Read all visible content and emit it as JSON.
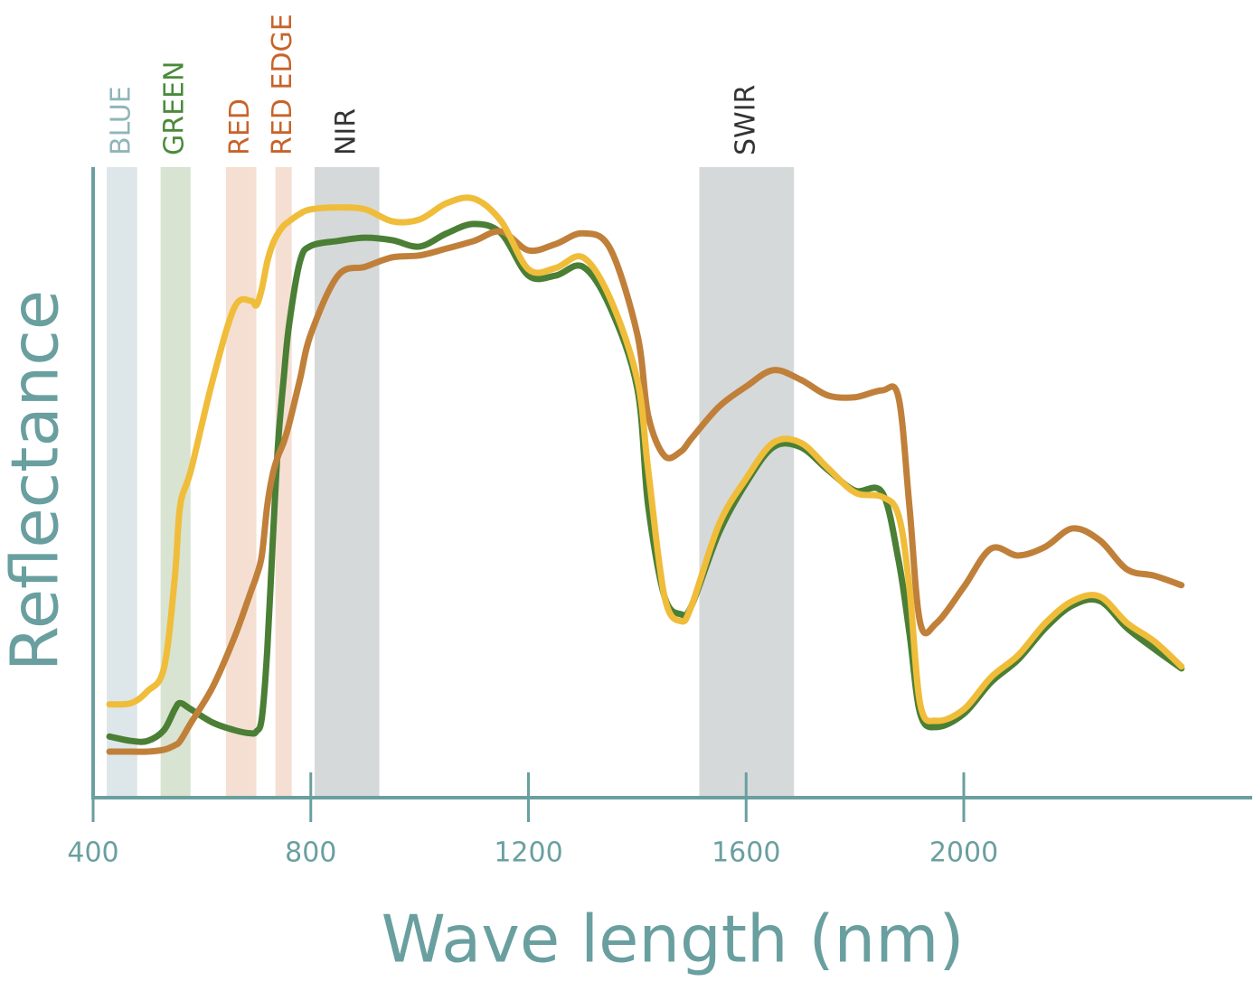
{
  "chart_data": {
    "type": "line",
    "x_label": "Wave length (nm)",
    "y_label": "Reflectance",
    "x": [
      430,
      470,
      500,
      530,
      550,
      560,
      580,
      620,
      660,
      690,
      700,
      710,
      720,
      730,
      740,
      750,
      760,
      780,
      800,
      850,
      900,
      950,
      1000,
      1050,
      1100,
      1150,
      1200,
      1250,
      1300,
      1350,
      1400,
      1420,
      1450,
      1480,
      1500,
      1550,
      1600,
      1650,
      1700,
      1750,
      1800,
      1850,
      1880,
      1900,
      1920,
      1950,
      2000,
      2050,
      2100,
      2150,
      2200,
      2250,
      2300,
      2350,
      2400
    ],
    "series": [
      {
        "color": "#4a7f35",
        "values": [
          9.7,
          9.0,
          9.0,
          10.7,
          14.0,
          15.0,
          14.0,
          11.9,
          10.7,
          10.2,
          10.5,
          12.6,
          23.4,
          40.5,
          56.3,
          66.3,
          74.9,
          85,
          87.5,
          88.3,
          88.8,
          88.4,
          87.4,
          89.5,
          91,
          89.5,
          82.8,
          82.8,
          84.2,
          77.8,
          64.9,
          46.3,
          31.9,
          29.1,
          30.5,
          42,
          49.9,
          55.6,
          55.6,
          52,
          48.7,
          48.4,
          37.7,
          26.2,
          13.3,
          11.2,
          13.3,
          18.3,
          21.9,
          26.9,
          30.5,
          31.2,
          26.9,
          23.6,
          20.5
        ]
      },
      {
        "color": "#c0803a",
        "values": [
          7.3,
          7.3,
          7.3,
          7.6,
          8.3,
          9.0,
          11.9,
          17.6,
          25.5,
          32.7,
          35.1,
          38.4,
          46.3,
          51.3,
          54.2,
          56.3,
          59.2,
          66.3,
          73.5,
          82.8,
          84.2,
          85.7,
          86,
          87.1,
          88.3,
          89.8,
          86.8,
          87.8,
          89.5,
          87.1,
          73.5,
          60.6,
          54.2,
          54.9,
          57,
          62,
          65.2,
          67.8,
          66.3,
          63.8,
          63.5,
          64.6,
          63.5,
          46.3,
          27.7,
          27.7,
          33.4,
          39.5,
          38.4,
          39.8,
          42.7,
          40.8,
          36.2,
          35.2,
          33.7
        ]
      },
      {
        "color": "#f0bd3a",
        "values": [
          14.8,
          15,
          16.9,
          20.5,
          34.8,
          46.3,
          52,
          66.3,
          77.8,
          78.8,
          78.1,
          80.7,
          85,
          87.8,
          89.5,
          90.7,
          91.4,
          92.6,
          93.3,
          93.6,
          93.3,
          91.4,
          91.7,
          94.3,
          95,
          91.4,
          83.8,
          84,
          85.7,
          79.2,
          66.3,
          52,
          31.9,
          28,
          30.5,
          43.3,
          50.6,
          56.3,
          56.3,
          52.3,
          48.4,
          47.7,
          44.8,
          33.4,
          14.8,
          12.2,
          14.0,
          19.1,
          22.6,
          27.7,
          31.2,
          31.9,
          27.7,
          24.8,
          20.8
        ]
      }
    ],
    "bands": [
      {
        "label": "BLUE",
        "start": 425,
        "end": 481,
        "color": "#dde7e9",
        "label_color": "#8fb6b9"
      },
      {
        "label": "GREEN",
        "start": 524,
        "end": 579,
        "color": "#d9e3d1",
        "label_color": "#4a8a3a"
      },
      {
        "label": "RED",
        "start": 644,
        "end": 700,
        "color": "#f5dfd3",
        "label_color": "#c8632a"
      },
      {
        "label": "RED EDGE",
        "start": 735,
        "end": 765,
        "color": "#f5dfd3",
        "label_color": "#c8632a"
      },
      {
        "label": "NIR",
        "start": 807,
        "end": 926,
        "color": "#d6d9da",
        "label_color": "#333333"
      },
      {
        "label": "SWIR",
        "start": 1514,
        "end": 1688,
        "color": "#d6d9da",
        "label_color": "#333333"
      }
    ],
    "xlim": [
      400,
      2530
    ],
    "xticks": [
      400,
      800,
      1200,
      1600,
      2000
    ],
    "ylim": [
      0,
      100
    ],
    "axis_color": "#6a9fa0"
  }
}
